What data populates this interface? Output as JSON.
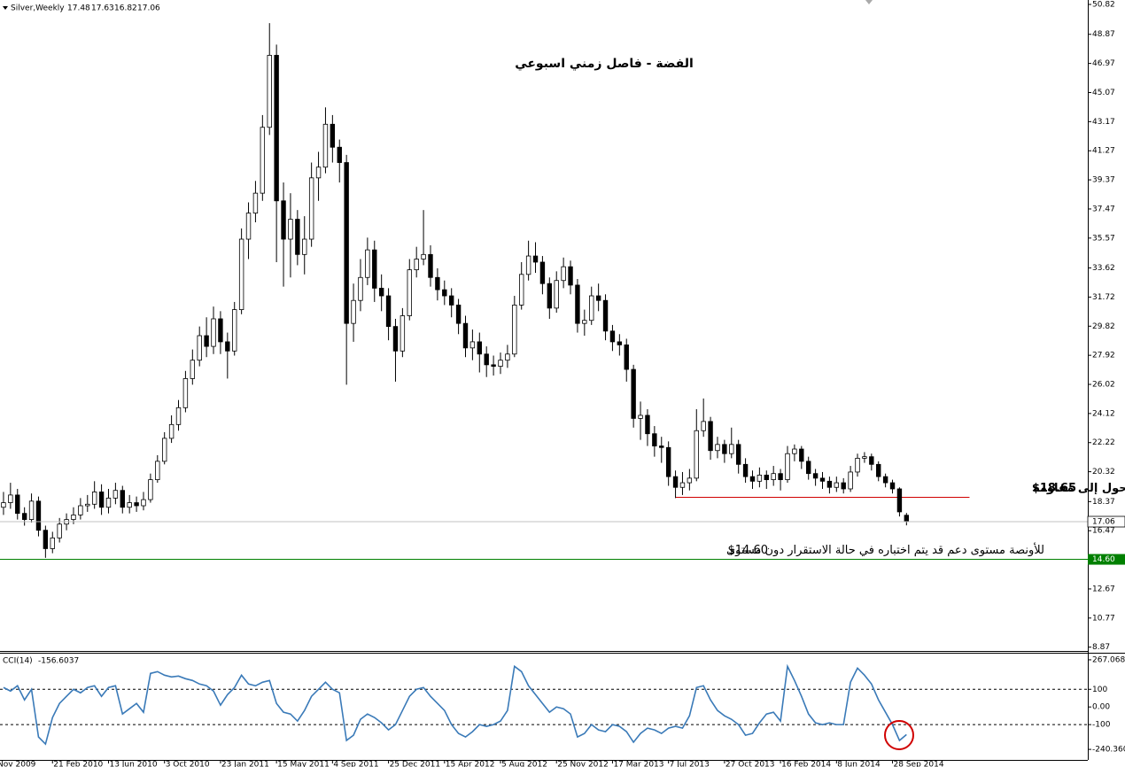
{
  "chart_data": [
    {
      "type": "candlestick",
      "symbol": "Silver,Weekly",
      "title": "الفضة - فاصل زمني اسبوعي",
      "up_color": "#ffffff",
      "down_color": "#000000",
      "edge_color": "#000000",
      "xlim": [
        -0.5,
        154.9
      ],
      "xticks": [
        {
          "value": -1,
          "label": "Nov 2009"
        },
        {
          "value": 7,
          "label": "21 Feb 2010"
        },
        {
          "value": 15,
          "label": "13 Jun 2010"
        },
        {
          "value": 23,
          "label": "3 Oct 2010"
        },
        {
          "value": 31,
          "label": "23 Jan 2011"
        },
        {
          "value": 39,
          "label": "15 May 2011"
        },
        {
          "value": 47,
          "label": "4 Sep 2011"
        },
        {
          "value": 55,
          "label": "25 Dec 2011"
        },
        {
          "value": 63,
          "label": "15 Apr 2012"
        },
        {
          "value": 71,
          "label": "5 Aug 2012"
        },
        {
          "value": 79,
          "label": "25 Nov 2012"
        },
        {
          "value": 87,
          "label": "17 Mar 2013"
        },
        {
          "value": 95,
          "label": "7 Jul 2013"
        },
        {
          "value": 103,
          "label": "27 Oct 2013"
        },
        {
          "value": 111,
          "label": "16 Feb 2014"
        },
        {
          "value": 119,
          "label": "8 Jun 2014"
        },
        {
          "value": 127,
          "label": "28 Sep 2014"
        }
      ],
      "ylim": [
        8.62,
        51.11
      ],
      "yticks": [
        50.82,
        48.87,
        46.97,
        45.07,
        43.17,
        41.27,
        39.37,
        37.47,
        35.57,
        33.62,
        31.72,
        29.82,
        27.92,
        26.02,
        24.12,
        22.22,
        20.32,
        18.37,
        16.47,
        12.67,
        10.77,
        8.87
      ],
      "open": [
        18.0,
        18.3,
        18.8,
        17.6,
        17.2,
        18.4,
        16.5,
        15.3,
        16.0,
        16.9,
        17.2,
        17.5,
        18.1,
        18.2,
        19.0,
        18.0,
        18.6,
        19.1,
        18.0,
        18.3,
        18.1,
        18.5,
        19.8,
        21.0,
        22.5,
        23.4,
        24.5,
        26.4,
        27.6,
        29.2,
        28.5,
        30.3,
        28.8,
        28.2,
        30.9,
        35.5,
        37.2,
        38.5,
        42.8,
        47.5,
        38.0,
        35.5,
        36.8,
        34.5,
        35.5,
        39.5,
        40.2,
        43.0,
        41.5,
        40.5,
        30.0,
        31.5,
        33.0,
        34.8,
        32.3,
        31.8,
        29.8,
        28.2,
        30.5,
        33.5,
        34.2,
        34.5,
        33.0,
        32.2,
        31.8,
        31.2,
        30.0,
        28.4,
        28.8,
        28.0,
        27.3,
        27.2,
        27.6,
        28.0,
        31.2,
        33.2,
        34.4,
        34.0,
        32.6,
        31.0,
        32.8,
        33.7,
        32.5,
        30.0,
        30.2,
        31.8,
        31.5,
        29.5,
        28.8,
        28.6,
        27.0,
        23.8,
        24.0,
        22.8,
        22.0,
        21.9,
        20.0,
        19.3,
        19.6,
        19.9,
        23.0,
        23.6,
        21.7,
        22.1,
        21.5,
        22.1,
        20.8,
        20.0,
        19.7,
        20.1,
        19.8,
        20.2,
        19.8,
        21.5,
        21.8,
        21.0,
        20.2,
        19.9,
        19.7,
        19.3,
        19.6,
        19.2,
        20.3,
        21.2,
        21.3,
        20.8,
        20.0,
        19.6,
        19.2,
        17.48
      ],
      "high": [
        19.0,
        19.6,
        19.2,
        18.0,
        18.9,
        18.7,
        16.8,
        16.4,
        17.3,
        17.6,
        18.0,
        18.6,
        18.8,
        19.7,
        19.5,
        19.2,
        19.6,
        19.4,
        18.8,
        18.7,
        19.0,
        20.2,
        21.4,
        22.9,
        24.0,
        25.0,
        26.9,
        28.3,
        29.8,
        30.4,
        31.1,
        30.8,
        29.4,
        31.4,
        36.2,
        37.9,
        39.3,
        43.6,
        49.6,
        48.2,
        39.2,
        38.5,
        37.4,
        37.0,
        40.5,
        41.2,
        44.1,
        43.6,
        42.0,
        41.0,
        32.6,
        34.2,
        35.6,
        35.4,
        33.2,
        32.3,
        30.3,
        31.0,
        34.2,
        35.0,
        37.4,
        35.1,
        33.6,
        32.8,
        32.3,
        31.6,
        30.5,
        29.6,
        29.4,
        28.5,
        27.9,
        28.1,
        28.6,
        31.8,
        34.0,
        35.4,
        35.3,
        34.4,
        33.0,
        33.4,
        34.3,
        34.1,
        32.9,
        30.9,
        32.4,
        32.6,
        31.9,
        29.9,
        29.3,
        29.0,
        27.3,
        24.9,
        24.4,
        23.3,
        22.6,
        22.3,
        20.4,
        20.3,
        20.5,
        24.4,
        25.1,
        23.9,
        22.6,
        22.4,
        23.2,
        22.4,
        21.2,
        20.4,
        20.6,
        20.4,
        20.7,
        20.5,
        22.0,
        22.1,
        22.0,
        21.3,
        20.5,
        20.3,
        20.0,
        20.0,
        19.9,
        20.7,
        21.5,
        21.6,
        21.5,
        21.0,
        20.2,
        19.8,
        19.3,
        17.63
      ],
      "low": [
        17.5,
        17.9,
        17.2,
        16.8,
        17.0,
        16.1,
        14.7,
        15.0,
        15.7,
        16.5,
        16.9,
        17.2,
        17.7,
        17.9,
        17.5,
        17.6,
        18.2,
        17.6,
        17.6,
        17.7,
        17.8,
        18.3,
        19.6,
        20.8,
        22.2,
        23.0,
        24.2,
        26.0,
        27.2,
        27.8,
        28.0,
        28.0,
        26.4,
        27.9,
        30.6,
        34.2,
        36.6,
        38.0,
        42.3,
        34.0,
        32.4,
        33.0,
        33.8,
        33.2,
        35.0,
        38.0,
        39.8,
        40.5,
        39.2,
        26.0,
        28.8,
        30.8,
        32.5,
        31.4,
        30.8,
        28.9,
        26.2,
        27.8,
        30.2,
        33.0,
        33.8,
        32.4,
        31.5,
        31.2,
        30.4,
        29.3,
        27.8,
        27.6,
        26.8,
        26.5,
        26.6,
        26.7,
        27.1,
        27.8,
        30.9,
        32.8,
        33.3,
        31.9,
        30.3,
        30.7,
        32.3,
        31.9,
        29.4,
        29.2,
        29.9,
        30.8,
        28.9,
        28.2,
        27.9,
        26.2,
        23.2,
        22.4,
        22.0,
        21.3,
        20.9,
        19.4,
        18.6,
        18.8,
        19.1,
        19.7,
        22.6,
        21.1,
        21.2,
        20.9,
        21.2,
        20.2,
        19.6,
        19.2,
        19.3,
        19.2,
        19.4,
        19.1,
        19.6,
        21.0,
        20.5,
        19.8,
        19.4,
        19.2,
        18.9,
        19.0,
        18.9,
        19.0,
        20.0,
        20.9,
        20.4,
        19.7,
        19.3,
        18.9,
        17.4,
        16.82
      ],
      "close": [
        18.3,
        18.8,
        17.6,
        17.2,
        18.4,
        16.5,
        15.3,
        16.0,
        16.9,
        17.2,
        17.5,
        18.1,
        18.2,
        19.0,
        18.0,
        18.6,
        19.1,
        18.0,
        18.3,
        18.1,
        18.5,
        19.8,
        21.0,
        22.5,
        23.4,
        24.5,
        26.4,
        27.6,
        29.2,
        28.5,
        30.3,
        28.8,
        28.2,
        30.9,
        35.5,
        37.2,
        38.5,
        42.8,
        47.5,
        38.0,
        35.5,
        36.8,
        34.5,
        35.5,
        39.5,
        40.2,
        43.0,
        41.5,
        40.5,
        30.0,
        31.5,
        33.0,
        34.8,
        32.3,
        31.8,
        29.8,
        28.2,
        30.5,
        33.5,
        34.2,
        34.5,
        33.0,
        32.2,
        31.8,
        31.2,
        30.0,
        28.4,
        28.8,
        28.0,
        27.3,
        27.2,
        27.6,
        28.0,
        31.2,
        33.2,
        34.4,
        34.0,
        32.6,
        31.0,
        32.8,
        33.7,
        32.5,
        30.0,
        30.2,
        31.8,
        31.5,
        29.5,
        28.8,
        28.6,
        27.0,
        23.8,
        24.0,
        22.8,
        22.0,
        21.9,
        20.0,
        19.3,
        19.6,
        19.9,
        23.0,
        23.6,
        21.7,
        22.1,
        21.5,
        22.1,
        20.8,
        20.0,
        19.7,
        20.1,
        19.8,
        20.2,
        19.8,
        21.5,
        21.8,
        21.0,
        20.2,
        19.9,
        19.7,
        19.3,
        19.6,
        19.2,
        20.3,
        21.2,
        21.3,
        20.8,
        20.0,
        19.6,
        19.2,
        17.7,
        17.06
      ],
      "levels": [
        {
          "value": 18.65,
          "label": "$18.65",
          "text": "مستوى دعم تحول إلى مقاومة",
          "color": "#d00000",
          "x": [
            96,
            138
          ]
        },
        {
          "value": 14.6,
          "label": "$14.60",
          "text": "للأونصة مستوى دعم قد يتم اختباره في حالة الاستقرار دون مستوى",
          "color": "#008000",
          "axis_label": "14.60"
        }
      ]
    },
    {
      "type": "line",
      "title": "CCI(14)",
      "color": "#3a7ab8",
      "xlim": [
        -0.5,
        154.9
      ],
      "ylim": [
        -300,
        302
      ],
      "yticks": [
        267.0689,
        100,
        {
          "value": 0,
          "label": "0.00"
        },
        -100,
        {
          "value": -240.36,
          "label": "-240.360"
        }
      ],
      "levels": [
        100,
        -100
      ],
      "values": [
        110,
        90,
        120,
        40,
        100,
        -170,
        -210,
        -60,
        20,
        60,
        100,
        80,
        110,
        120,
        60,
        110,
        120,
        -40,
        -10,
        20,
        -30,
        190,
        200,
        180,
        170,
        175,
        160,
        150,
        130,
        120,
        90,
        10,
        70,
        110,
        180,
        130,
        120,
        140,
        150,
        20,
        -30,
        -40,
        -80,
        -20,
        60,
        100,
        140,
        100,
        80,
        -190,
        -160,
        -70,
        -40,
        -60,
        -90,
        -130,
        -100,
        -20,
        60,
        100,
        110,
        60,
        20,
        -20,
        -100,
        -150,
        -170,
        -140,
        -100,
        -110,
        -100,
        -80,
        -20,
        230,
        200,
        120,
        70,
        20,
        -30,
        0,
        -10,
        -40,
        -170,
        -150,
        -100,
        -130,
        -140,
        -100,
        -110,
        -140,
        -200,
        -150,
        -120,
        -130,
        -150,
        -120,
        -110,
        -120,
        -50,
        110,
        120,
        40,
        -20,
        -50,
        -70,
        -100,
        -160,
        -150,
        -90,
        -40,
        -30,
        -80,
        230,
        150,
        60,
        -40,
        -90,
        -100,
        -90,
        -100,
        -100,
        140,
        220,
        180,
        130,
        40,
        -30,
        -100,
        -190,
        -156.6037
      ]
    }
  ]
}
